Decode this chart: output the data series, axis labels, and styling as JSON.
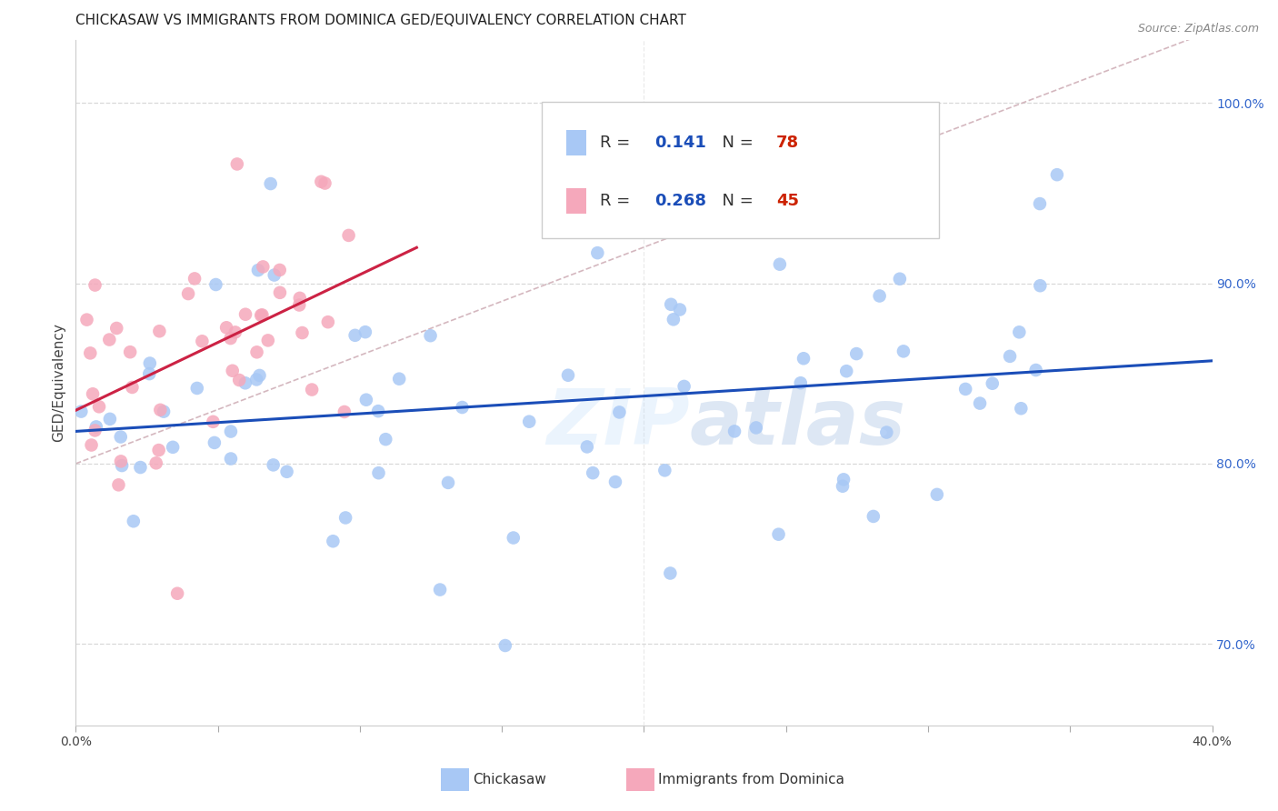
{
  "title": "CHICKASAW VS IMMIGRANTS FROM DOMINICA GED/EQUIVALENCY CORRELATION CHART",
  "source": "Source: ZipAtlas.com",
  "ylabel": "GED/Equivalency",
  "watermark": "ZIPatlas",
  "xlim": [
    0.0,
    0.4
  ],
  "ylim": [
    0.655,
    1.035
  ],
  "yticks": [
    0.7,
    0.8,
    0.9,
    1.0
  ],
  "ytick_labels": [
    "70.0%",
    "80.0%",
    "90.0%",
    "100.0%"
  ],
  "chickasaw_color": "#a8c8f5",
  "dominica_color": "#f5a8bb",
  "chickasaw_line_color": "#1a4db8",
  "dominica_line_color": "#cc2244",
  "diagonal_color": "#d0b0b8",
  "legend_R1": "0.141",
  "legend_N1": "78",
  "legend_R2": "0.268",
  "legend_N2": "45",
  "R_color": "#1a4db8",
  "N_color": "#cc2200",
  "background_color": "#ffffff",
  "grid_color": "#d8d8d8",
  "title_fontsize": 11,
  "axis_label_fontsize": 11,
  "tick_fontsize": 10,
  "source_fontsize": 9
}
